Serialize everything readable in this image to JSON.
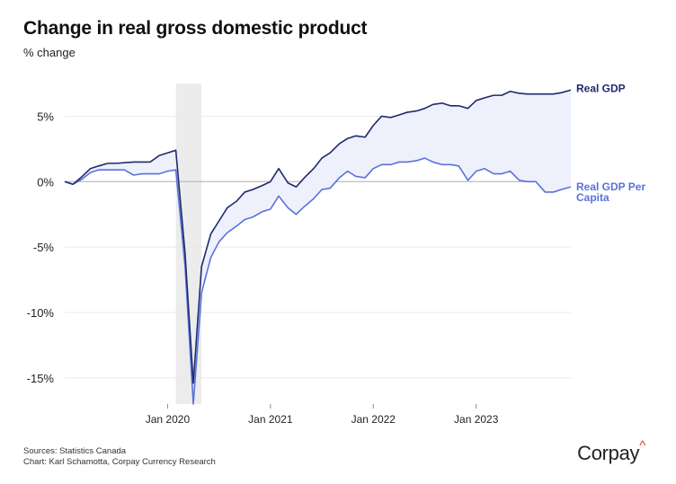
{
  "title": "Change in real gross domestic product",
  "subtitle": "% change",
  "footer": {
    "sources": "Sources: Statistics Canada",
    "chart_credit": "Chart: Karl Schamotta, Corpay Currency Research"
  },
  "brand": {
    "name": "Corpay",
    "mark": "^"
  },
  "colors": {
    "real_gdp": "#1e2a6e",
    "per_capita": "#5a72d8",
    "fill": "#eef0fb",
    "recession": "#ececec",
    "zero": "#bdbdbd",
    "grid": "#e9e9e9"
  },
  "chart_data": {
    "type": "line",
    "ylim": [
      -17,
      7.5
    ],
    "yticks": [
      5,
      0,
      -5,
      -10,
      -15
    ],
    "ytick_labels": [
      "5%",
      "0%",
      "-5%",
      "-10%",
      "-15%"
    ],
    "xlim": [
      2019.0,
      2023.92
    ],
    "xticks": [
      2020.0,
      2021.0,
      2022.0,
      2023.0
    ],
    "xtick_labels": [
      "Jan 2020",
      "Jan 2021",
      "Jan 2022",
      "Jan 2023"
    ],
    "recession_band": [
      2020.08,
      2020.33
    ],
    "series": [
      {
        "name": "Real GDP",
        "x": [
          2019.0,
          2019.08,
          2019.17,
          2019.25,
          2019.33,
          2019.42,
          2019.5,
          2019.58,
          2019.67,
          2019.75,
          2019.83,
          2019.92,
          2020.0,
          2020.08,
          2020.17,
          2020.25,
          2020.33,
          2020.42,
          2020.5,
          2020.58,
          2020.67,
          2020.75,
          2020.83,
          2020.92,
          2021.0,
          2021.08,
          2021.17,
          2021.25,
          2021.33,
          2021.42,
          2021.5,
          2021.58,
          2021.67,
          2021.75,
          2021.83,
          2021.92,
          2022.0,
          2022.08,
          2022.17,
          2022.25,
          2022.33,
          2022.42,
          2022.5,
          2022.58,
          2022.67,
          2022.75,
          2022.83,
          2022.92,
          2023.0,
          2023.08,
          2023.17,
          2023.25,
          2023.33,
          2023.42,
          2023.5,
          2023.58,
          2023.67,
          2023.75,
          2023.83,
          2023.92
        ],
        "values": [
          0.0,
          -0.2,
          0.4,
          1.0,
          1.2,
          1.4,
          1.4,
          1.45,
          1.5,
          1.5,
          1.5,
          2.0,
          2.2,
          2.4,
          -5.5,
          -15.4,
          -6.5,
          -4.0,
          -3.0,
          -2.0,
          -1.5,
          -0.8,
          -0.6,
          -0.3,
          0.0,
          1.0,
          -0.1,
          -0.4,
          0.3,
          1.0,
          1.8,
          2.2,
          2.9,
          3.3,
          3.5,
          3.4,
          4.3,
          5.0,
          4.9,
          5.1,
          5.3,
          5.4,
          5.6,
          5.9,
          6.0,
          5.8,
          5.8,
          5.6,
          6.2,
          6.4,
          6.6,
          6.6,
          6.9,
          6.75,
          6.7,
          6.7,
          6.7,
          6.7,
          6.8,
          7.0
        ]
      },
      {
        "name": "Real GDP Per Capita",
        "x": [
          2019.0,
          2019.08,
          2019.17,
          2019.25,
          2019.33,
          2019.42,
          2019.5,
          2019.58,
          2019.67,
          2019.75,
          2019.83,
          2019.92,
          2020.0,
          2020.08,
          2020.17,
          2020.25,
          2020.33,
          2020.42,
          2020.5,
          2020.58,
          2020.67,
          2020.75,
          2020.83,
          2020.92,
          2021.0,
          2021.08,
          2021.17,
          2021.25,
          2021.33,
          2021.42,
          2021.5,
          2021.58,
          2021.67,
          2021.75,
          2021.83,
          2021.92,
          2022.0,
          2022.08,
          2022.17,
          2022.25,
          2022.33,
          2022.42,
          2022.5,
          2022.58,
          2022.67,
          2022.75,
          2022.83,
          2022.92,
          2023.0,
          2023.08,
          2023.17,
          2023.25,
          2023.33,
          2023.42,
          2023.5,
          2023.58,
          2023.67,
          2023.75,
          2023.83,
          2023.92
        ],
        "values": [
          0.0,
          -0.2,
          0.2,
          0.7,
          0.9,
          0.9,
          0.9,
          0.9,
          0.5,
          0.6,
          0.6,
          0.6,
          0.8,
          0.9,
          -6.5,
          -17.0,
          -8.5,
          -5.8,
          -4.6,
          -3.9,
          -3.4,
          -2.9,
          -2.7,
          -2.3,
          -2.1,
          -1.1,
          -2.0,
          -2.5,
          -1.9,
          -1.3,
          -0.6,
          -0.5,
          0.3,
          0.8,
          0.4,
          0.3,
          1.0,
          1.3,
          1.3,
          1.5,
          1.5,
          1.6,
          1.8,
          1.5,
          1.3,
          1.3,
          1.2,
          0.1,
          0.8,
          1.0,
          0.6,
          0.6,
          0.8,
          0.1,
          0.0,
          0.0,
          -0.8,
          -0.8,
          -0.6,
          -0.4
        ]
      }
    ],
    "series_labels": [
      "Real GDP",
      "Real GDP Per",
      "Capita"
    ],
    "grid": true,
    "legend": "direct-labels-right"
  }
}
